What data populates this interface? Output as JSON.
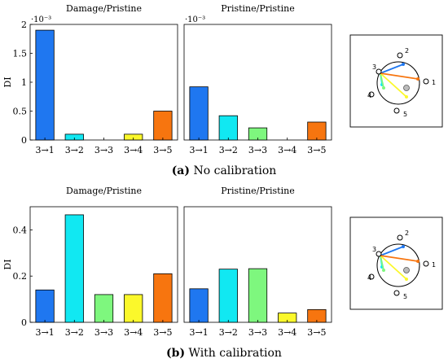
{
  "figure": {
    "caption_a_tag": "(a)",
    "caption_a_text": "No calibration",
    "caption_b_tag": "(b)",
    "caption_b_text": "With calibration",
    "ylabel": "DI",
    "exponent_label": "·10⁻³",
    "inset_label_1": "1",
    "inset_label_2": "2",
    "inset_label_3": "3",
    "inset_label_4": "4",
    "inset_label_5": "5"
  },
  "colors": {
    "3→1": "#1f77f0",
    "3→2": "#11e8f2",
    "3→3": "#7ef77e",
    "3→4": "#fbf82b",
    "3→5": "#f7750f"
  },
  "chart_data": [
    {
      "type": "bar",
      "title": "Damage/Pristine",
      "ylabel": "DI",
      "y_multiplier": "·10⁻³",
      "categories": [
        "3→1",
        "3→2",
        "3→3",
        "3→4",
        "3→5"
      ],
      "values": [
        1.9,
        0.1,
        0,
        0.1,
        0.5
      ],
      "ylim": [
        0,
        2
      ],
      "yticks": [
        "0",
        "0.5",
        "1",
        "1.5",
        "2"
      ]
    },
    {
      "type": "bar",
      "title": "Pristine/Pristine",
      "y_multiplier": "·10⁻³",
      "categories": [
        "3→1",
        "3→2",
        "3→3",
        "3→4",
        "3→5"
      ],
      "values": [
        0.92,
        0.42,
        0.21,
        0,
        0.31
      ],
      "ylim": [
        0,
        2
      ]
    },
    {
      "type": "bar",
      "title": "Damage/Pristine",
      "ylabel": "DI",
      "categories": [
        "3→1",
        "3→2",
        "3→3",
        "3→4",
        "3→5"
      ],
      "values": [
        0.14,
        0.465,
        0.12,
        0.12,
        0.21
      ],
      "ylim": [
        0,
        0.5
      ],
      "yticks": [
        "0",
        "0.2",
        "0.4"
      ]
    },
    {
      "type": "bar",
      "title": "Pristine/Pristine",
      "categories": [
        "3→1",
        "3→2",
        "3→3",
        "3→4",
        "3→5"
      ],
      "values": [
        0.145,
        0.23,
        0.232,
        0.04,
        0.055
      ],
      "ylim": [
        0,
        0.5
      ]
    }
  ]
}
